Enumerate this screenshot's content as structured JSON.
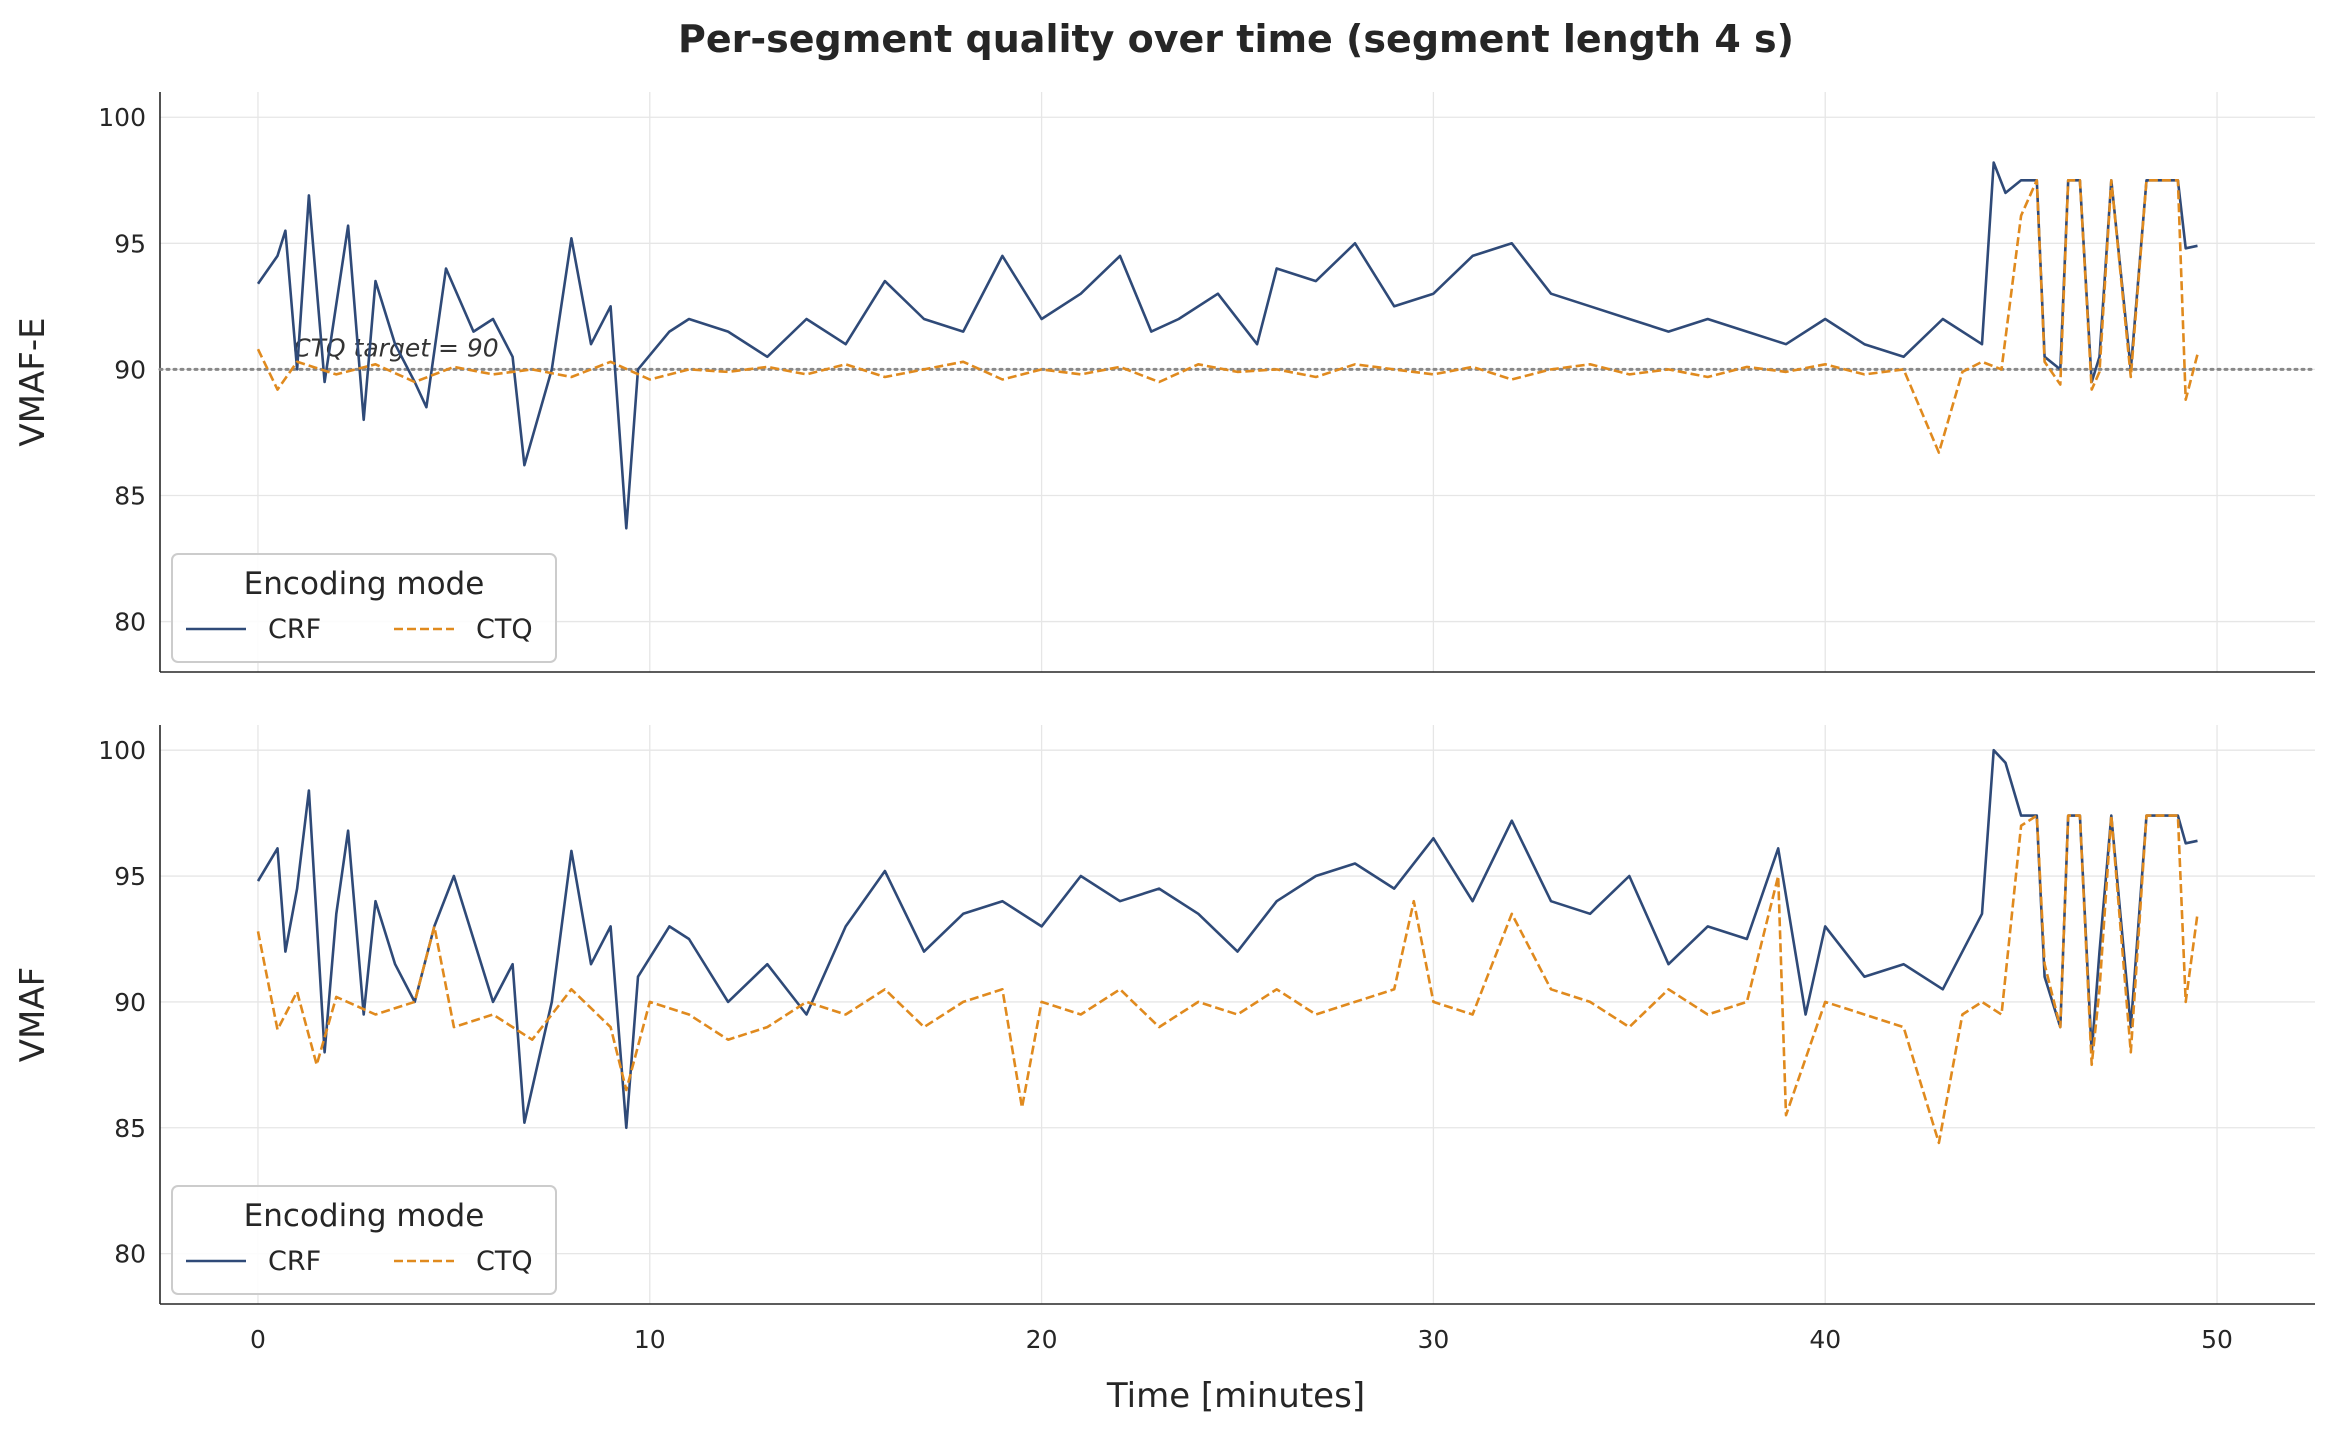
{
  "colors": {
    "crf": "#2f4a78",
    "ctq": "#e08a1e",
    "target": "#888888"
  },
  "chart_data": {
    "type": "line",
    "title": "Per-segment quality over time  (segment length 4 s)",
    "xlabel": "Time [minutes]",
    "xlim": [
      -2.5,
      52.5
    ],
    "xticks": [
      0,
      10,
      20,
      30,
      40,
      50
    ],
    "x_tick_labels": [
      "0",
      "10",
      "20",
      "30",
      "40",
      "50"
    ],
    "grid": true,
    "legend_title": "Encoding mode",
    "legend_entries": [
      "CRF",
      "CTQ"
    ],
    "legend_placement": "lower-left",
    "panels": [
      {
        "ylabel": "VMAF-E",
        "ylim": [
          78,
          101
        ],
        "yticks": [
          80,
          85,
          90,
          95,
          100
        ],
        "y_tick_labels": [
          "80",
          "85",
          "90",
          "95",
          "100"
        ],
        "target_line": {
          "y": 90,
          "label": "CTQ target = 90"
        },
        "series": [
          {
            "name": "CRF",
            "style": "solid",
            "x": [
              0,
              0.5,
              0.7,
              1.0,
              1.3,
              1.7,
              2.3,
              2.7,
              3.0,
              3.5,
              4.0,
              4.3,
              4.8,
              5.5,
              6.0,
              6.5,
              6.8,
              7.5,
              8.0,
              8.5,
              9.0,
              9.4,
              9.7,
              10.5,
              11.0,
              12.0,
              13.0,
              14.0,
              15.0,
              16.0,
              17.0,
              18.0,
              19.0,
              20.0,
              21.0,
              22.0,
              22.8,
              23.5,
              24.5,
              25.5,
              26.0,
              27.0,
              28.0,
              29.0,
              30.0,
              31.0,
              32.0,
              33.0,
              34.0,
              35.0,
              36.0,
              37.0,
              38.0,
              39.0,
              40.0,
              41.0,
              42.0,
              43.0,
              44.0,
              44.3,
              44.6,
              45.0,
              45.4,
              45.6,
              46.0,
              46.2,
              46.5,
              46.8,
              47.0,
              47.3,
              47.8,
              48.2,
              48.6,
              49.0,
              49.2,
              49.5
            ],
            "y": [
              93.4,
              94.5,
              95.5,
              90.0,
              96.9,
              89.5,
              95.7,
              88.0,
              93.5,
              91.0,
              89.5,
              88.5,
              94.0,
              91.5,
              92.0,
              90.5,
              86.2,
              90.0,
              95.2,
              91.0,
              92.5,
              83.7,
              90.0,
              91.5,
              92.0,
              91.5,
              90.5,
              92.0,
              91.0,
              93.5,
              92.0,
              91.5,
              94.5,
              92.0,
              93.0,
              94.5,
              91.5,
              92.0,
              93.0,
              91.0,
              94.0,
              93.5,
              95.0,
              92.5,
              93.0,
              94.5,
              95.0,
              93.0,
              92.5,
              92.0,
              91.5,
              92.0,
              91.5,
              91.0,
              92.0,
              91.0,
              90.5,
              92.0,
              91.0,
              98.2,
              97.0,
              97.5,
              97.5,
              90.5,
              90.0,
              97.5,
              97.5,
              89.5,
              90.5,
              97.5,
              90.0,
              97.5,
              97.5,
              97.5,
              94.8,
              94.9
            ]
          },
          {
            "name": "CTQ",
            "style": "dashed",
            "x": [
              0,
              0.5,
              1.0,
              2.0,
              3.0,
              4.0,
              5.0,
              6.0,
              7.0,
              8.0,
              9.0,
              10.0,
              11.0,
              12.0,
              13.0,
              14.0,
              15.0,
              16.0,
              17.0,
              18.0,
              19.0,
              20.0,
              21.0,
              22.0,
              23.0,
              24.0,
              25.0,
              26.0,
              27.0,
              28.0,
              29.0,
              30.0,
              31.0,
              32.0,
              33.0,
              34.0,
              35.0,
              36.0,
              37.0,
              38.0,
              39.0,
              40.0,
              41.0,
              42.0,
              42.9,
              43.5,
              44.0,
              44.5,
              45.0,
              45.4,
              45.6,
              46.0,
              46.2,
              46.5,
              46.8,
              47.0,
              47.3,
              47.8,
              48.2,
              48.6,
              49.0,
              49.2,
              49.5
            ],
            "y": [
              90.8,
              89.2,
              90.3,
              89.8,
              90.2,
              89.5,
              90.1,
              89.8,
              90.0,
              89.7,
              90.3,
              89.6,
              90.0,
              89.9,
              90.1,
              89.8,
              90.2,
              89.7,
              90.0,
              90.3,
              89.6,
              90.0,
              89.8,
              90.1,
              89.5,
              90.2,
              89.9,
              90.0,
              89.7,
              90.2,
              90.0,
              89.8,
              90.1,
              89.6,
              90.0,
              90.2,
              89.8,
              90.0,
              89.7,
              90.1,
              89.9,
              90.2,
              89.8,
              90.0,
              86.7,
              89.9,
              90.3,
              90.0,
              96.1,
              97.5,
              90.3,
              89.4,
              97.5,
              97.5,
              89.2,
              89.9,
              97.5,
              89.7,
              97.5,
              97.5,
              97.5,
              88.8,
              90.6
            ]
          }
        ]
      },
      {
        "ylabel": "VMAF",
        "ylim": [
          78,
          101
        ],
        "yticks": [
          80,
          85,
          90,
          95,
          100
        ],
        "y_tick_labels": [
          "80",
          "85",
          "90",
          "95",
          "100"
        ],
        "series": [
          {
            "name": "CRF",
            "style": "solid",
            "x": [
              0,
              0.5,
              0.7,
              1.0,
              1.3,
              1.7,
              2.0,
              2.3,
              2.7,
              3.0,
              3.5,
              4.0,
              4.5,
              5.0,
              5.5,
              6.0,
              6.5,
              6.8,
              7.5,
              8.0,
              8.5,
              9.0,
              9.4,
              9.7,
              10.5,
              11.0,
              12.0,
              13.0,
              14.0,
              15.0,
              16.0,
              17.0,
              18.0,
              19.0,
              20.0,
              21.0,
              22.0,
              23.0,
              24.0,
              25.0,
              26.0,
              27.0,
              28.0,
              29.0,
              30.0,
              31.0,
              32.0,
              33.0,
              34.0,
              35.0,
              36.0,
              37.0,
              38.0,
              38.8,
              39.5,
              40.0,
              41.0,
              42.0,
              43.0,
              44.0,
              44.3,
              44.6,
              45.0,
              45.4,
              45.6,
              46.0,
              46.2,
              46.5,
              46.8,
              47.0,
              47.3,
              47.8,
              48.2,
              48.6,
              49.0,
              49.2,
              49.5
            ],
            "y": [
              94.8,
              96.1,
              92.0,
              94.5,
              98.4,
              88.0,
              93.5,
              96.8,
              89.5,
              94.0,
              91.5,
              90.0,
              93.0,
              95.0,
              92.5,
              90.0,
              91.5,
              85.2,
              90.0,
              96.0,
              91.5,
              93.0,
              85.0,
              91.0,
              93.0,
              92.5,
              90.0,
              91.5,
              89.5,
              93.0,
              95.2,
              92.0,
              93.5,
              94.0,
              93.0,
              95.0,
              94.0,
              94.5,
              93.5,
              92.0,
              94.0,
              95.0,
              95.5,
              94.5,
              96.5,
              94.0,
              97.2,
              94.0,
              93.5,
              95.0,
              91.5,
              93.0,
              92.5,
              96.1,
              89.5,
              93.0,
              91.0,
              91.5,
              90.5,
              93.5,
              100.0,
              99.5,
              97.4,
              97.4,
              91.0,
              89.0,
              97.4,
              97.4,
              88.0,
              92.0,
              97.4,
              89.0,
              97.4,
              97.4,
              97.4,
              96.3,
              96.4
            ]
          },
          {
            "name": "CTQ",
            "style": "dashed",
            "x": [
              0,
              0.5,
              1.0,
              1.5,
              2.0,
              3.0,
              4.0,
              4.5,
              5.0,
              6.0,
              7.0,
              8.0,
              9.0,
              9.4,
              10.0,
              11.0,
              12.0,
              13.0,
              14.0,
              15.0,
              16.0,
              17.0,
              18.0,
              19.0,
              19.5,
              20.0,
              21.0,
              22.0,
              23.0,
              24.0,
              25.0,
              26.0,
              27.0,
              28.0,
              29.0,
              29.5,
              30.0,
              31.0,
              32.0,
              33.0,
              34.0,
              35.0,
              36.0,
              37.0,
              38.0,
              38.8,
              39.0,
              40.0,
              41.0,
              42.0,
              42.9,
              43.5,
              44.0,
              44.5,
              45.0,
              45.4,
              45.6,
              46.0,
              46.2,
              46.5,
              46.8,
              47.0,
              47.3,
              47.8,
              48.2,
              48.6,
              49.0,
              49.2,
              49.5
            ],
            "y": [
              92.8,
              88.9,
              90.4,
              87.5,
              90.2,
              89.5,
              90.0,
              93.0,
              89.0,
              89.5,
              88.5,
              90.5,
              89.0,
              86.5,
              90.0,
              89.5,
              88.5,
              89.0,
              90.0,
              89.5,
              90.5,
              89.0,
              90.0,
              90.5,
              85.8,
              90.0,
              89.5,
              90.5,
              89.0,
              90.0,
              89.5,
              90.5,
              89.5,
              90.0,
              90.5,
              94.0,
              90.0,
              89.5,
              93.5,
              90.5,
              90.0,
              89.0,
              90.5,
              89.5,
              90.0,
              95.0,
              85.5,
              90.0,
              89.5,
              89.0,
              84.4,
              89.5,
              90.0,
              89.5,
              97.0,
              97.4,
              91.5,
              89.0,
              97.4,
              97.4,
              87.5,
              90.5,
              97.4,
              88.0,
              97.4,
              97.4,
              97.4,
              90.0,
              93.5
            ]
          }
        ]
      }
    ]
  }
}
